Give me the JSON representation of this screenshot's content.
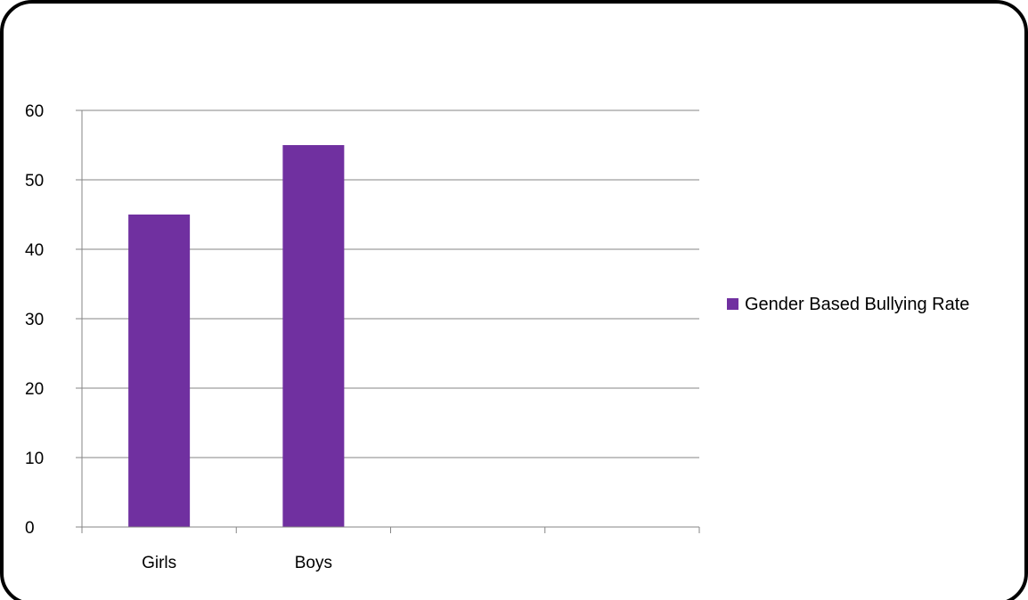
{
  "chart_data": {
    "type": "bar",
    "categories": [
      "Girls",
      "Boys",
      "",
      ""
    ],
    "series": [
      {
        "name": "Gender Based Bullying Rate",
        "values": [
          45,
          55,
          null,
          null
        ],
        "color": "#7030A0"
      }
    ],
    "ylim": [
      0,
      60
    ],
    "yticks": [
      0,
      10,
      20,
      30,
      40,
      50,
      60
    ],
    "grid": true,
    "legend_position": "right"
  },
  "colors": {
    "border": "#000000",
    "gridline": "#868686",
    "bar": "#7030A0"
  }
}
